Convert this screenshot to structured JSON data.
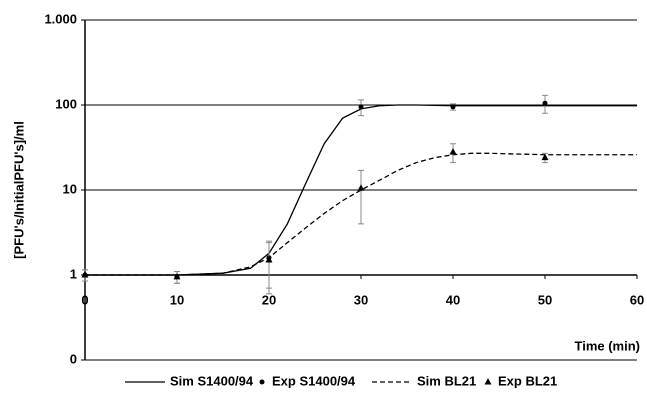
{
  "chart_data": {
    "type": "line",
    "y_label": "[PFU's/InitialPFU's]/ml",
    "x_label": "Time (min)",
    "y_scale": "log",
    "grid": true,
    "legend": "bottom",
    "xlim": [
      0,
      60
    ],
    "xticks": [
      0,
      10,
      20,
      30,
      40,
      50,
      60
    ],
    "ylim": [
      0.1,
      1000
    ],
    "yticks": [
      {
        "value": 0.1,
        "label": "0"
      },
      1,
      10,
      100,
      {
        "value": 1000,
        "label": "1.000"
      }
    ],
    "series": [
      {
        "name": "Sim S1400/94",
        "color": "#000000",
        "style": "solid",
        "x": [
          0,
          10,
          15,
          18,
          20,
          22,
          24,
          26,
          28,
          30,
          32,
          34,
          36,
          40,
          50,
          60
        ],
        "values": [
          1,
          1,
          1.05,
          1.2,
          1.8,
          4,
          12,
          35,
          70,
          90,
          98,
          100,
          100,
          98,
          98,
          98
        ]
      },
      {
        "name": "Exp S1400/94",
        "color": "#000000",
        "marker": "circle",
        "x": [
          0,
          10,
          20,
          30,
          40,
          50
        ],
        "values": [
          1,
          0.95,
          1.6,
          95,
          95,
          105
        ],
        "errors": [
          0.15,
          0.15,
          0.9,
          20,
          8,
          25
        ]
      },
      {
        "name": "Sim BL21",
        "color": "#000000",
        "style": "dashed",
        "x": [
          0,
          10,
          15,
          18,
          20,
          22,
          24,
          26,
          28,
          30,
          32,
          34,
          36,
          38,
          40,
          42,
          44,
          50,
          60
        ],
        "values": [
          1,
          1,
          1.05,
          1.25,
          1.6,
          2.4,
          3.6,
          5.3,
          7.5,
          10,
          13,
          17,
          21,
          24,
          26,
          27,
          27,
          26,
          26
        ]
      },
      {
        "name": "Exp BL21",
        "color": "#000000",
        "marker": "triangle",
        "x": [
          0,
          10,
          20,
          30,
          40,
          50
        ],
        "values": [
          1,
          0.95,
          1.5,
          10.5,
          28,
          24
        ],
        "errors": [
          0.15,
          0.15,
          0.9,
          6.5,
          7,
          3
        ]
      }
    ]
  }
}
